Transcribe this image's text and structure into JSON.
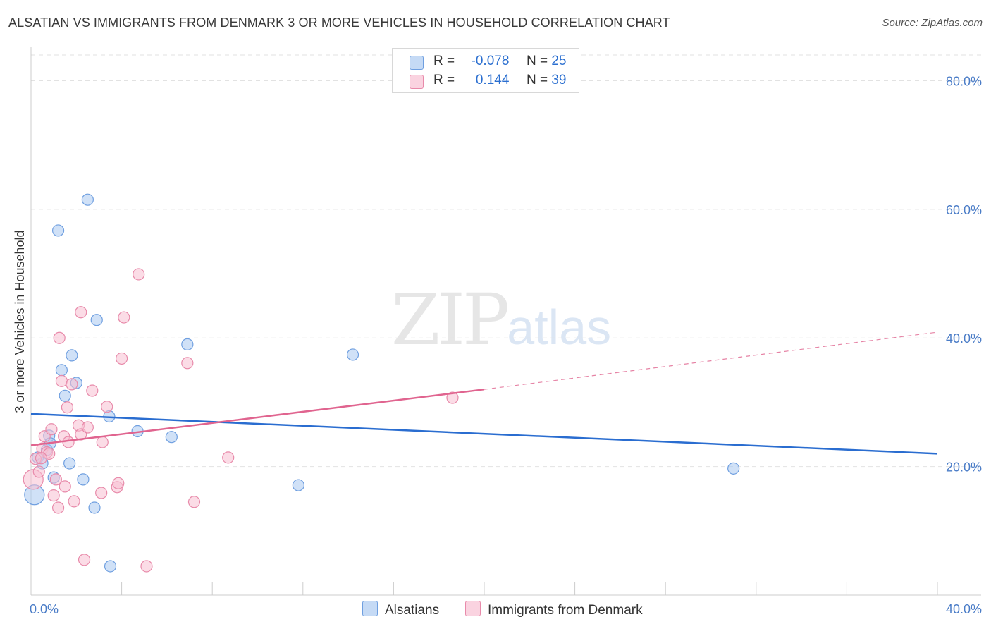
{
  "title": "ALSATIAN VS IMMIGRANTS FROM DENMARK 3 OR MORE VEHICLES IN HOUSEHOLD CORRELATION CHART",
  "source": "Source: ZipAtlas.com",
  "watermark": {
    "zip": "ZIP",
    "atlas": "atlas"
  },
  "legend": {
    "rows": [
      {
        "r_label": "R =",
        "r_value": "-0.078",
        "n_label": "N =",
        "n_value": "25",
        "color": "#a9c8f0",
        "border": "#6f9fe0"
      },
      {
        "r_label": "R =",
        "r_value": "0.144",
        "n_label": "N =",
        "n_value": "39",
        "color": "#f7c0d2",
        "border": "#e88aaa"
      }
    ]
  },
  "bottom_legend": {
    "items": [
      {
        "label": "Alsatians",
        "color": "#c5daf5",
        "border": "#6f9fe0"
      },
      {
        "label": "Immigrants from Denmark",
        "color": "#fad3e0",
        "border": "#e88aaa"
      }
    ]
  },
  "chart_data": {
    "type": "scatter",
    "title": "ALSATIAN VS IMMIGRANTS FROM DENMARK 3 OR MORE VEHICLES IN HOUSEHOLD CORRELATION CHART",
    "xlabel": "",
    "ylabel": "3 or more Vehicles in Household",
    "xlim": [
      0,
      40
    ],
    "ylim": [
      0,
      84
    ],
    "x_ticks": [
      0,
      4,
      8,
      12,
      16,
      20,
      24,
      28,
      32,
      36,
      40
    ],
    "x_tick_labels": {
      "0": "0.0%",
      "40": "40.0%"
    },
    "y_ticks": [
      20,
      40,
      60,
      80
    ],
    "y_tick_labels": [
      "20.0%",
      "40.0%",
      "60.0%",
      "80.0%"
    ],
    "grid": true,
    "series": [
      {
        "name": "Alsatians",
        "color": "#6f9fe0",
        "fill": "#a9c8f0",
        "trend": {
          "x": [
            0,
            40
          ],
          "y": [
            28.2,
            22.0
          ],
          "color": "#2a6dd0"
        },
        "points": [
          {
            "x": 0.15,
            "y": 15.6,
            "big": true
          },
          {
            "x": 0.3,
            "y": 21.4
          },
          {
            "x": 0.5,
            "y": 20.5
          },
          {
            "x": 0.7,
            "y": 22.6
          },
          {
            "x": 0.8,
            "y": 24.8
          },
          {
            "x": 0.85,
            "y": 23.6
          },
          {
            "x": 1.0,
            "y": 18.3
          },
          {
            "x": 1.2,
            "y": 56.7
          },
          {
            "x": 1.35,
            "y": 35.0
          },
          {
            "x": 1.5,
            "y": 31.0
          },
          {
            "x": 1.7,
            "y": 20.5
          },
          {
            "x": 1.8,
            "y": 37.3
          },
          {
            "x": 2.0,
            "y": 33.0
          },
          {
            "x": 2.3,
            "y": 18.0
          },
          {
            "x": 2.5,
            "y": 61.5
          },
          {
            "x": 2.8,
            "y": 13.6
          },
          {
            "x": 2.9,
            "y": 42.8
          },
          {
            "x": 3.45,
            "y": 27.8
          },
          {
            "x": 3.5,
            "y": 4.5
          },
          {
            "x": 4.7,
            "y": 25.5
          },
          {
            "x": 6.2,
            "y": 24.6
          },
          {
            "x": 6.9,
            "y": 39.0
          },
          {
            "x": 11.8,
            "y": 17.1
          },
          {
            "x": 14.2,
            "y": 37.4
          },
          {
            "x": 31.0,
            "y": 19.7
          }
        ]
      },
      {
        "name": "Immigrants from Denmark",
        "color": "#e88aaa",
        "fill": "#f7c0d2",
        "trend": {
          "x": [
            0,
            20
          ],
          "y": [
            23.3,
            32.0
          ],
          "dash_x": [
            20,
            40
          ],
          "dash_y": [
            32.0,
            40.9
          ],
          "color": "#e0648f"
        },
        "points": [
          {
            "x": 0.1,
            "y": 18.0,
            "big": true
          },
          {
            "x": 0.2,
            "y": 21.2
          },
          {
            "x": 0.35,
            "y": 19.2
          },
          {
            "x": 0.5,
            "y": 22.8
          },
          {
            "x": 0.6,
            "y": 24.7
          },
          {
            "x": 0.7,
            "y": 22.2
          },
          {
            "x": 0.8,
            "y": 22.0
          },
          {
            "x": 0.9,
            "y": 25.8
          },
          {
            "x": 1.0,
            "y": 15.5
          },
          {
            "x": 1.1,
            "y": 18.0
          },
          {
            "x": 1.2,
            "y": 13.6
          },
          {
            "x": 1.25,
            "y": 40.0
          },
          {
            "x": 1.35,
            "y": 33.3
          },
          {
            "x": 1.45,
            "y": 24.7
          },
          {
            "x": 1.5,
            "y": 16.9
          },
          {
            "x": 1.6,
            "y": 29.2
          },
          {
            "x": 1.65,
            "y": 23.8
          },
          {
            "x": 1.8,
            "y": 32.8
          },
          {
            "x": 1.9,
            "y": 14.6
          },
          {
            "x": 2.1,
            "y": 26.4
          },
          {
            "x": 2.2,
            "y": 25.0
          },
          {
            "x": 2.2,
            "y": 44.0
          },
          {
            "x": 2.35,
            "y": 5.5
          },
          {
            "x": 2.5,
            "y": 26.1
          },
          {
            "x": 2.7,
            "y": 31.8
          },
          {
            "x": 3.1,
            "y": 15.9
          },
          {
            "x": 3.15,
            "y": 23.8
          },
          {
            "x": 3.35,
            "y": 29.3
          },
          {
            "x": 3.8,
            "y": 16.8
          },
          {
            "x": 3.85,
            "y": 17.4
          },
          {
            "x": 4.0,
            "y": 36.8
          },
          {
            "x": 4.1,
            "y": 43.2
          },
          {
            "x": 4.75,
            "y": 49.9
          },
          {
            "x": 5.1,
            "y": 4.5
          },
          {
            "x": 6.9,
            "y": 36.1
          },
          {
            "x": 7.2,
            "y": 14.5
          },
          {
            "x": 8.7,
            "y": 21.4
          },
          {
            "x": 18.6,
            "y": 30.7
          },
          {
            "x": 0.45,
            "y": 21.3
          }
        ]
      }
    ]
  }
}
